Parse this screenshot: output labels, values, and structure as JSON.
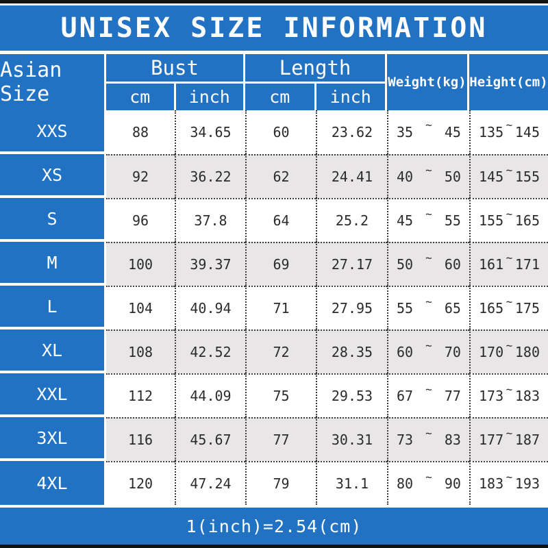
{
  "title": "UNISEX SIZE INFORMATION",
  "footer": "1(inch)=2.54(cm)",
  "colors": {
    "accent_blue": "#2272c3",
    "row_alt_gray": "#e8e6e7",
    "border_black": "#121212",
    "dotted_line": "#3c3c3c"
  },
  "table": {
    "size_header": "Asian Size",
    "range_separator": "~",
    "groups": [
      {
        "label": "Bust",
        "sub": [
          "cm",
          "inch"
        ]
      },
      {
        "label": "Length",
        "sub": [
          "cm",
          "inch"
        ]
      }
    ],
    "single_headers": [
      "Weight(kg)",
      "Height(cm)"
    ],
    "rows": [
      {
        "size": "XXS",
        "bust_cm": "88",
        "bust_inch": "34.65",
        "length_cm": "60",
        "length_inch": "23.62",
        "weight_min": "35",
        "weight_max": "45",
        "height_min": "135",
        "height_max": "145"
      },
      {
        "size": "XS",
        "bust_cm": "92",
        "bust_inch": "36.22",
        "length_cm": "62",
        "length_inch": "24.41",
        "weight_min": "40",
        "weight_max": "50",
        "height_min": "145",
        "height_max": "155"
      },
      {
        "size": "S",
        "bust_cm": "96",
        "bust_inch": "37.8",
        "length_cm": "64",
        "length_inch": "25.2",
        "weight_min": "45",
        "weight_max": "55",
        "height_min": "155",
        "height_max": "165"
      },
      {
        "size": "M",
        "bust_cm": "100",
        "bust_inch": "39.37",
        "length_cm": "69",
        "length_inch": "27.17",
        "weight_min": "50",
        "weight_max": "60",
        "height_min": "161",
        "height_max": "171"
      },
      {
        "size": "L",
        "bust_cm": "104",
        "bust_inch": "40.94",
        "length_cm": "71",
        "length_inch": "27.95",
        "weight_min": "55",
        "weight_max": "65",
        "height_min": "165",
        "height_max": "175"
      },
      {
        "size": "XL",
        "bust_cm": "108",
        "bust_inch": "42.52",
        "length_cm": "72",
        "length_inch": "28.35",
        "weight_min": "60",
        "weight_max": "70",
        "height_min": "170",
        "height_max": "180"
      },
      {
        "size": "XXL",
        "bust_cm": "112",
        "bust_inch": "44.09",
        "length_cm": "75",
        "length_inch": "29.53",
        "weight_min": "67",
        "weight_max": "77",
        "height_min": "173",
        "height_max": "183"
      },
      {
        "size": "3XL",
        "bust_cm": "116",
        "bust_inch": "45.67",
        "length_cm": "77",
        "length_inch": "30.31",
        "weight_min": "73",
        "weight_max": "83",
        "height_min": "177",
        "height_max": "187"
      },
      {
        "size": "4XL",
        "bust_cm": "120",
        "bust_inch": "47.24",
        "length_cm": "79",
        "length_inch": "31.1",
        "weight_min": "80",
        "weight_max": "90",
        "height_min": "183",
        "height_max": "193"
      }
    ]
  }
}
